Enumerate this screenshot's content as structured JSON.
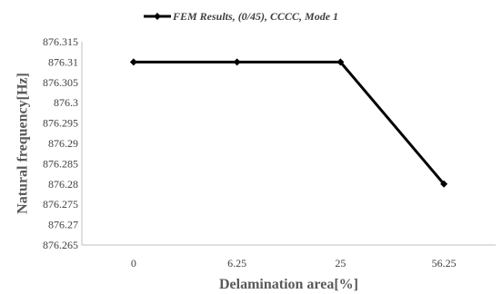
{
  "chart_data": {
    "type": "line",
    "categories": [
      "0",
      "6.25",
      "25",
      "56.25"
    ],
    "series": [
      {
        "name": "FEM Results, (0/45), CCCC, Mode 1",
        "values": [
          876.31,
          876.31,
          876.31,
          876.28
        ],
        "color": "#000000",
        "marker": "diamond"
      }
    ],
    "xlabel": "Delamination area[%]",
    "ylabel": "Natural frequency[Hz]",
    "ylim": [
      876.265,
      876.315
    ],
    "yticks": [
      "876.265",
      "876.27",
      "876.275",
      "876.28",
      "876.285",
      "876.29",
      "876.295",
      "876.3",
      "876.305",
      "876.31",
      "876.315"
    ],
    "grid": false,
    "legend_position": "top"
  }
}
